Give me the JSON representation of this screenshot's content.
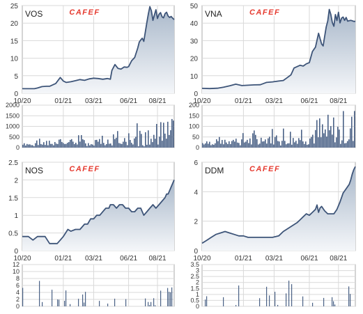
{
  "logo_text": "CAFEF",
  "colors": {
    "line": "#3d5478",
    "fill_top": "#a9b8ca",
    "fill_bottom": "#f4f6f9",
    "volume": "#4a6186",
    "grid": "#d9d9d9",
    "frame": "#aaaaaa",
    "tick_text": "#333333",
    "logo_red": "#e53a2f"
  },
  "chart_data": [
    {
      "type": "area",
      "title": "VOS",
      "x_ticks": [
        "10/20",
        "01/21",
        "03/21",
        "06/21",
        "08/21"
      ],
      "y_ticks": [
        "0",
        "5",
        "10",
        "15",
        "20",
        "25"
      ],
      "ylim": [
        0,
        25
      ],
      "price_series": {
        "x": [
          0,
          0.04,
          0.08,
          0.1,
          0.13,
          0.16,
          0.18,
          0.22,
          0.25,
          0.27,
          0.29,
          0.32,
          0.35,
          0.38,
          0.41,
          0.44,
          0.47,
          0.5,
          0.53,
          0.56,
          0.58,
          0.59,
          0.61,
          0.63,
          0.65,
          0.67,
          0.69,
          0.7,
          0.72,
          0.74,
          0.76,
          0.77,
          0.78,
          0.79,
          0.8,
          0.81,
          0.82,
          0.83,
          0.84,
          0.85,
          0.86,
          0.87,
          0.88,
          0.89,
          0.9,
          0.91,
          0.92,
          0.93,
          0.94,
          0.95,
          0.96,
          0.97,
          0.98,
          0.99,
          1.0
        ],
        "y": [
          1.3,
          1.3,
          1.3,
          1.5,
          1.9,
          2.0,
          2.0,
          2.8,
          4.5,
          3.5,
          3.1,
          3.3,
          3.6,
          3.9,
          3.7,
          4.1,
          4.3,
          4.2,
          4.0,
          4.2,
          4.0,
          6.5,
          8.2,
          7.1,
          6.9,
          7.5,
          7.4,
          7.6,
          9.3,
          10.2,
          12.9,
          14.6,
          15.2,
          15.7,
          14.8,
          17.5,
          20.2,
          22.6,
          24.7,
          23.5,
          20.8,
          22.4,
          23.8,
          21.3,
          22.5,
          23.0,
          21.8,
          21.5,
          22.7,
          23.1,
          22.0,
          21.6,
          21.9,
          21.4,
          21.0
        ]
      },
      "volume_ticks": [
        "0",
        "500",
        "1000",
        "1500",
        "2000"
      ],
      "volume_ylim": [
        0,
        2000
      ],
      "volume_seed": 1,
      "volume_base": 140,
      "volume_peak": 1450
    },
    {
      "type": "area",
      "title": "VNA",
      "x_ticks": [
        "10/20",
        "01/21",
        "03/21",
        "06/21",
        "08/21"
      ],
      "y_ticks": [
        "0",
        "10",
        "20",
        "30",
        "40",
        "50"
      ],
      "ylim": [
        0,
        50
      ],
      "price_series": {
        "x": [
          0,
          0.05,
          0.1,
          0.14,
          0.18,
          0.22,
          0.26,
          0.3,
          0.34,
          0.38,
          0.42,
          0.46,
          0.5,
          0.53,
          0.56,
          0.58,
          0.6,
          0.62,
          0.64,
          0.66,
          0.68,
          0.7,
          0.72,
          0.74,
          0.76,
          0.78,
          0.79,
          0.8,
          0.81,
          0.82,
          0.83,
          0.84,
          0.85,
          0.86,
          0.87,
          0.88,
          0.89,
          0.9,
          0.91,
          0.92,
          0.93,
          0.94,
          0.95,
          0.96,
          0.97,
          0.98,
          0.99,
          1.0
        ],
        "y": [
          2.8,
          2.7,
          2.9,
          3.5,
          4.3,
          5.2,
          4.4,
          4.6,
          4.8,
          4.9,
          6.2,
          6.5,
          7.0,
          7.3,
          9.2,
          10.5,
          14.4,
          15.2,
          16.0,
          15.5,
          16.8,
          17.5,
          23.8,
          26.3,
          34.2,
          28.1,
          27.0,
          32.5,
          37.8,
          41.2,
          47.8,
          45.0,
          40.3,
          38.2,
          44.9,
          41.5,
          46.2,
          40.1,
          42.8,
          43.5,
          41.6,
          43.2,
          41.1,
          41.4,
          41.6,
          41.3,
          41.0,
          41.0
        ]
      },
      "volume_ticks": [
        "0",
        "50",
        "100",
        "150",
        "200"
      ],
      "volume_ylim": [
        0,
        200
      ],
      "volume_seed": 7,
      "volume_base": 22,
      "volume_peak": 200
    },
    {
      "type": "area",
      "title": "NOS",
      "x_ticks": [
        "10/20",
        "01/21",
        "03/21",
        "06/21",
        "08/21"
      ],
      "y_ticks": [
        "0",
        "0.5",
        "1",
        "1.5",
        "2",
        "2.5"
      ],
      "ylim": [
        0,
        2.5
      ],
      "price_series": {
        "x": [
          0,
          0.04,
          0.07,
          0.1,
          0.12,
          0.15,
          0.18,
          0.2,
          0.23,
          0.25,
          0.27,
          0.3,
          0.32,
          0.35,
          0.38,
          0.41,
          0.43,
          0.45,
          0.47,
          0.49,
          0.51,
          0.53,
          0.55,
          0.57,
          0.58,
          0.6,
          0.62,
          0.64,
          0.66,
          0.68,
          0.7,
          0.72,
          0.74,
          0.76,
          0.78,
          0.8,
          0.82,
          0.84,
          0.86,
          0.88,
          0.9,
          0.92,
          0.94,
          0.95,
          0.96,
          0.97,
          0.98,
          0.99,
          1.0
        ],
        "y": [
          0.4,
          0.4,
          0.3,
          0.4,
          0.4,
          0.4,
          0.2,
          0.2,
          0.2,
          0.3,
          0.4,
          0.6,
          0.55,
          0.6,
          0.6,
          0.75,
          0.75,
          0.9,
          0.9,
          1.0,
          1.0,
          1.1,
          1.2,
          1.2,
          1.3,
          1.3,
          1.2,
          1.3,
          1.3,
          1.2,
          1.2,
          1.1,
          1.1,
          1.2,
          1.2,
          1.0,
          1.1,
          1.2,
          1.3,
          1.2,
          1.3,
          1.4,
          1.5,
          1.6,
          1.6,
          1.7,
          1.8,
          1.9,
          2.0
        ]
      },
      "volume_ticks": [
        "0",
        "2",
        "4",
        "6",
        "8",
        "10",
        "12"
      ],
      "volume_ylim": [
        0,
        12
      ],
      "volume_seed": 3,
      "volume_base": 0,
      "volume_peak": 10
    },
    {
      "type": "area",
      "title": "DDM",
      "x_ticks": [
        "10/20",
        "01/21",
        "03/21",
        "06/21",
        "08/21"
      ],
      "y_ticks": [
        "0",
        "2",
        "4",
        "6"
      ],
      "ylim": [
        0,
        6
      ],
      "price_series": {
        "x": [
          0,
          0.03,
          0.06,
          0.09,
          0.12,
          0.15,
          0.18,
          0.21,
          0.24,
          0.27,
          0.3,
          0.34,
          0.38,
          0.42,
          0.46,
          0.5,
          0.53,
          0.56,
          0.59,
          0.62,
          0.64,
          0.66,
          0.68,
          0.7,
          0.72,
          0.74,
          0.75,
          0.76,
          0.77,
          0.78,
          0.8,
          0.82,
          0.84,
          0.86,
          0.88,
          0.9,
          0.92,
          0.94,
          0.96,
          0.97,
          0.98,
          0.99,
          1.0
        ],
        "y": [
          0.5,
          0.7,
          0.9,
          1.1,
          1.2,
          1.3,
          1.2,
          1.1,
          1.0,
          1.0,
          0.9,
          0.9,
          0.9,
          0.9,
          0.9,
          1.0,
          1.3,
          1.5,
          1.7,
          1.9,
          2.1,
          2.3,
          2.5,
          2.4,
          2.6,
          2.8,
          3.1,
          2.6,
          2.9,
          3.0,
          2.7,
          2.5,
          2.5,
          2.5,
          2.8,
          3.3,
          3.9,
          4.2,
          4.5,
          4.8,
          5.2,
          5.5,
          5.7
        ]
      },
      "volume_ticks": [
        "0",
        "0.5",
        "1",
        "1.5",
        "2",
        "2.5",
        "3",
        "3.5"
      ],
      "volume_ylim": [
        0,
        3.5
      ],
      "volume_seed": 11,
      "volume_base": 0,
      "volume_peak": 3.0
    }
  ]
}
